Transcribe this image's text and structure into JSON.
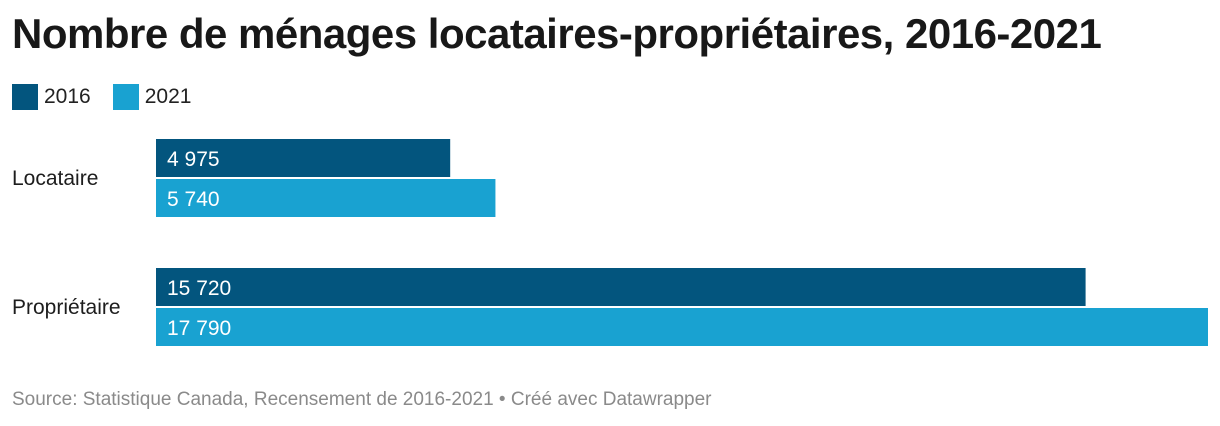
{
  "title": "Nombre de ménages locataires-propriétaires, 2016-2021",
  "source": "Source: Statistique Canada, Recensement de 2016-2021 • Créé avec Datawrapper",
  "colors": {
    "s2016": "#03557e",
    "s2021": "#19a2d1",
    "label_text": "#ffffff"
  },
  "chart_data": {
    "type": "bar",
    "orientation": "horizontal",
    "categories": [
      "Locataire",
      "Propriétaire"
    ],
    "series": [
      {
        "name": "2016",
        "values": [
          4975,
          15720
        ],
        "labels": [
          "4 975",
          "15 720"
        ]
      },
      {
        "name": "2021",
        "values": [
          5740,
          17790
        ],
        "labels": [
          "5 740",
          "17 790"
        ]
      }
    ],
    "xlim": [
      0,
      17790
    ],
    "legend_position": "top-left",
    "grid": false
  }
}
